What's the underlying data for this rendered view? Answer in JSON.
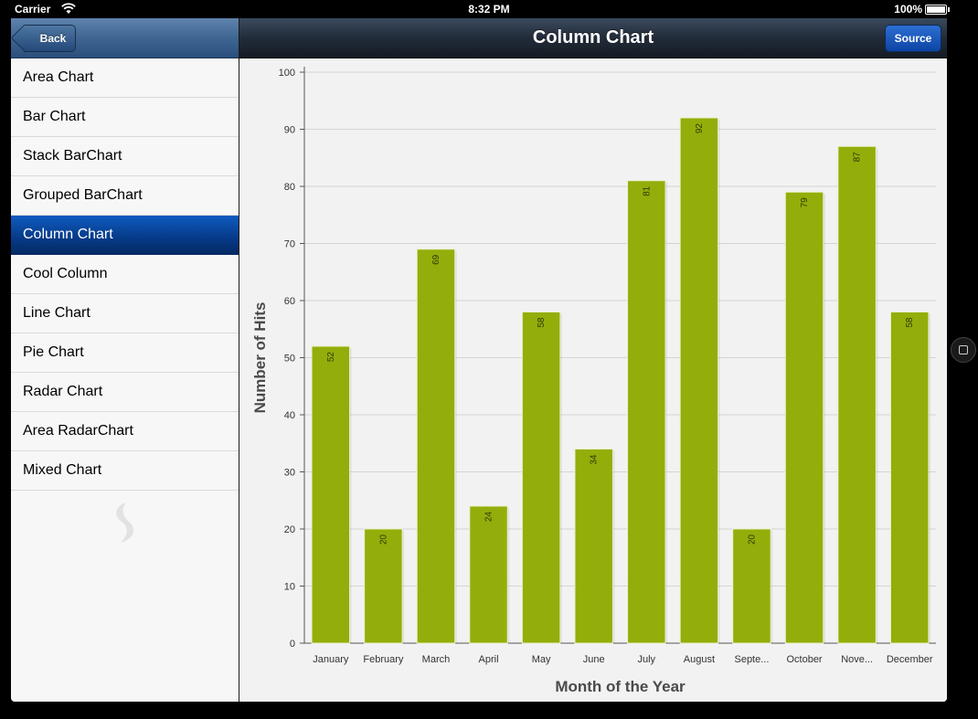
{
  "status_bar": {
    "carrier": "Carrier",
    "time": "8:32 PM",
    "battery": "100%"
  },
  "master": {
    "back_label": "Back",
    "items": [
      {
        "label": "Area Chart"
      },
      {
        "label": "Bar Chart"
      },
      {
        "label": "Stack BarChart"
      },
      {
        "label": "Grouped BarChart"
      },
      {
        "label": "Column Chart",
        "selected": true
      },
      {
        "label": "Cool Column"
      },
      {
        "label": "Line Chart"
      },
      {
        "label": "Pie Chart"
      },
      {
        "label": "Radar Chart"
      },
      {
        "label": "Area RadarChart"
      },
      {
        "label": "Mixed Chart"
      }
    ]
  },
  "detail": {
    "title": "Column Chart",
    "source_label": "Source"
  },
  "colors": {
    "bar": "#93ae0a",
    "selected_row": "#0a4aa3"
  },
  "chart_data": {
    "type": "bar",
    "categories": [
      "January",
      "February",
      "March",
      "April",
      "May",
      "June",
      "July",
      "August",
      "Septe...",
      "October",
      "Nove...",
      "December"
    ],
    "values": [
      52,
      20,
      69,
      24,
      58,
      34,
      81,
      92,
      20,
      79,
      87,
      58
    ],
    "xlabel": "Month of the Year",
    "ylabel": "Number of Hits",
    "ylim": [
      0,
      100
    ],
    "yticks": [
      0,
      10,
      20,
      30,
      40,
      50,
      60,
      70,
      80,
      90,
      100
    ],
    "grid": true,
    "data_labels": true
  }
}
